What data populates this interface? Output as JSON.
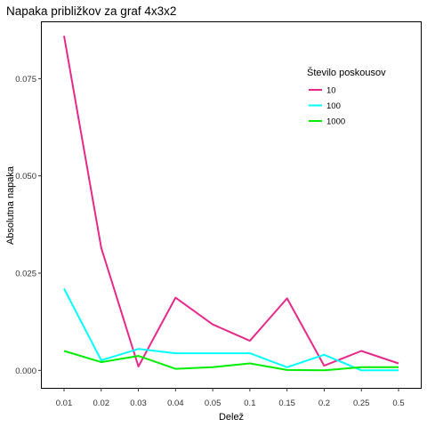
{
  "chart_data": {
    "type": "line",
    "title": "Napaka približkov za graf 4x3x2",
    "xlabel": "Delež",
    "ylabel": "Absolutna napaka",
    "categories": [
      "0.01",
      "0.02",
      "0.03",
      "0.04",
      "0.05",
      "0.1",
      "0.15",
      "0.2",
      "0.25",
      "0.5"
    ],
    "ylim": [
      -0.0045,
      0.0895
    ],
    "yticks": [
      0.0,
      0.025,
      0.05,
      0.075
    ],
    "ytick_labels": [
      "0.000",
      "0.025",
      "0.050",
      "0.075"
    ],
    "grid": false,
    "legend": {
      "title": "Število poskousov",
      "placement": "top-right"
    },
    "series": [
      {
        "name": "10",
        "color": "#e7298a",
        "values": [
          0.086,
          0.0315,
          0.001,
          0.0187,
          0.0118,
          0.0076,
          0.0185,
          0.0012,
          0.005,
          0.0018
        ]
      },
      {
        "name": "100",
        "color": "#00ffff",
        "values": [
          0.021,
          0.0026,
          0.0055,
          0.0044,
          0.0044,
          0.0044,
          0.0008,
          0.004,
          0.0,
          0.0
        ]
      },
      {
        "name": "1000",
        "color": "#00ee00",
        "values": [
          0.005,
          0.0021,
          0.0037,
          0.0004,
          0.0008,
          0.0018,
          0.0001,
          0.0,
          0.0008,
          0.0008
        ]
      }
    ]
  }
}
